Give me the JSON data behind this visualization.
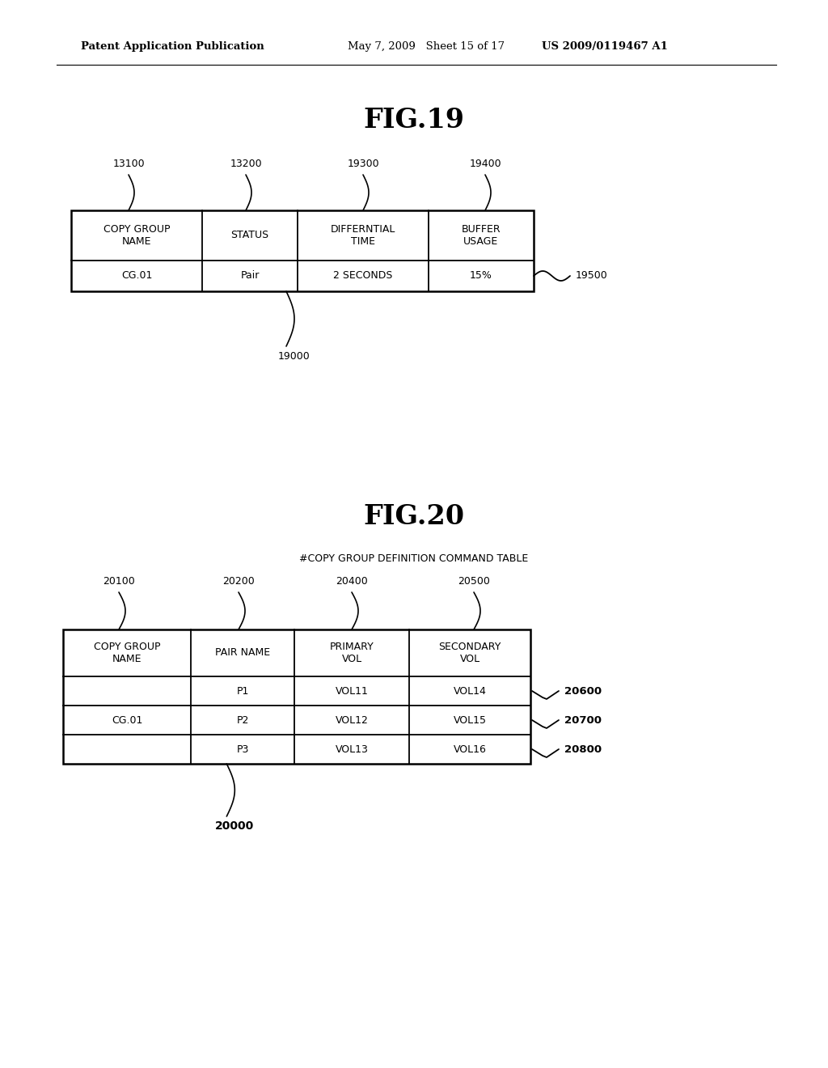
{
  "background_color": "#ffffff",
  "header_left": "Patent Application Publication",
  "header_mid": "May 7, 2009   Sheet 15 of 17",
  "header_right": "US 2009/0119467 A1",
  "fig19_title": "FIG.19",
  "fig20_title": "FIG.20",
  "fig20_subtitle": "#COPY GROUP DEFINITION COMMAND TABLE",
  "fig19_table": {
    "headers": [
      "COPY GROUP\nNAME",
      "STATUS",
      "DIFFERNTIAL\nTIME",
      "BUFFER\nUSAGE"
    ],
    "data": [
      [
        "CG.01",
        "Pair",
        "2 SECONDS",
        "15%"
      ]
    ],
    "col_labels": [
      "13100",
      "13200",
      "19300",
      "19400"
    ],
    "row_label": "19500",
    "bottom_label": "19000"
  },
  "fig20_table": {
    "headers": [
      "COPY GROUP\nNAME",
      "PAIR NAME",
      "PRIMARY\nVOL",
      "SECONDARY\nVOL"
    ],
    "data": [
      [
        "",
        "P1",
        "VOL11",
        "VOL14"
      ],
      [
        "CG.01",
        "P2",
        "VOL12",
        "VOL15"
      ],
      [
        "",
        "P3",
        "VOL13",
        "VOL16"
      ]
    ],
    "col_labels": [
      "20100",
      "20200",
      "20400",
      "20500"
    ],
    "row_labels": [
      "20600",
      "20700",
      "20800"
    ],
    "bottom_label": "20000"
  }
}
